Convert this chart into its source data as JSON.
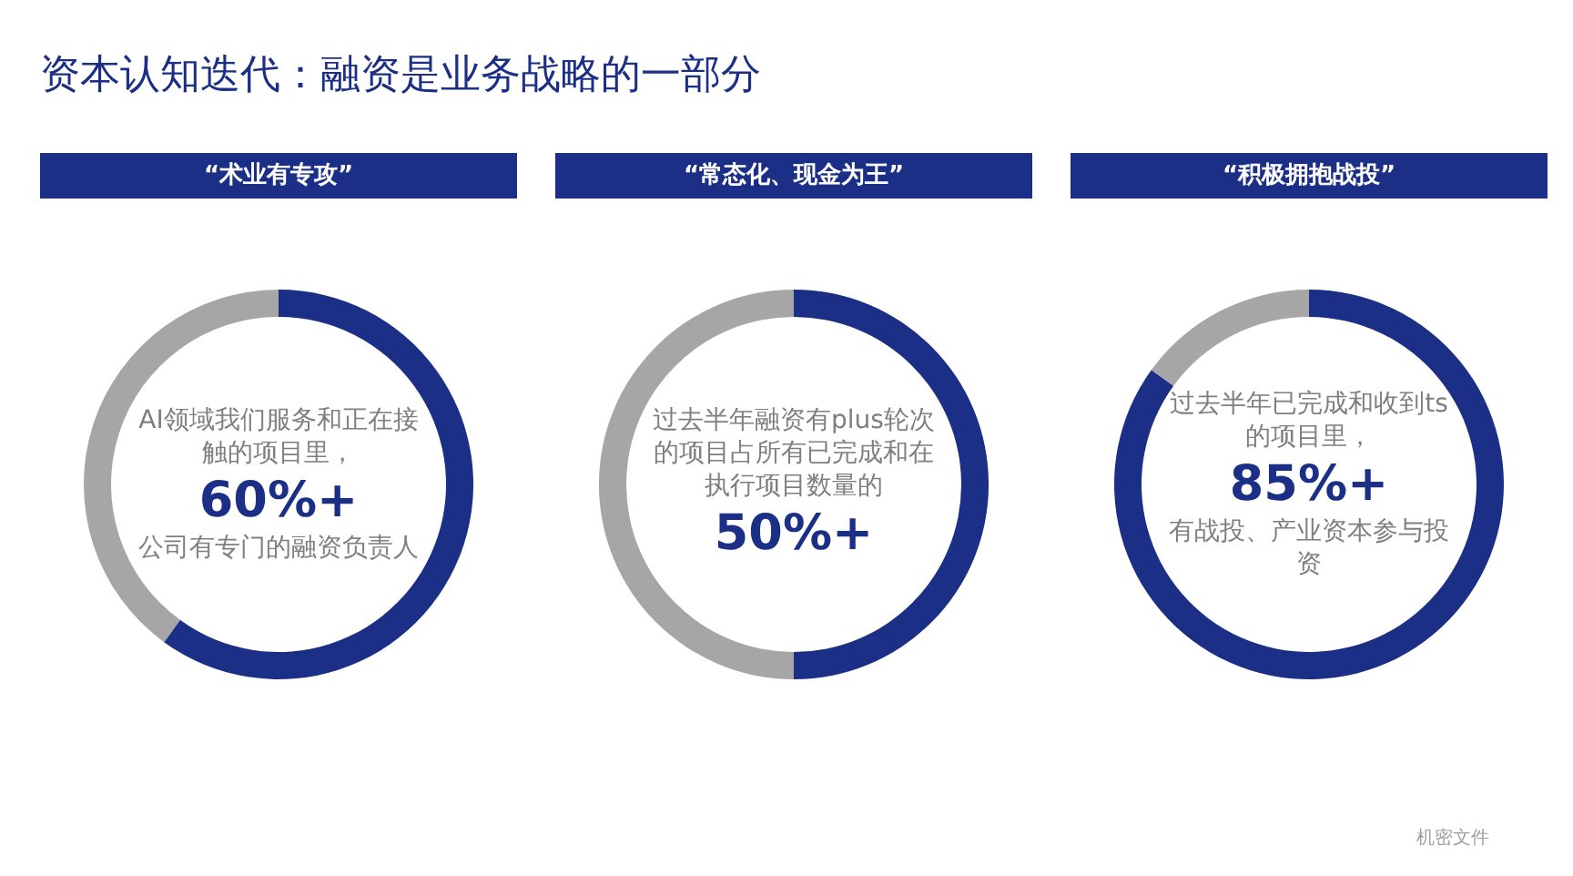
{
  "chart_data": [
    {
      "type": "donut",
      "title": "“术业有专攻”",
      "categories": [
        null,
        null
      ],
      "values": [
        60,
        40
      ],
      "colors": [
        "#1b2f86",
        "#a6a6a6"
      ],
      "value_labels": [
        "60%+",
        null
      ],
      "annotations": [
        "AI领域我们服务和正在接触的项目里，",
        "公司有专门的融资负责人"
      ]
    },
    {
      "type": "donut",
      "title": "“常态化、现金为王”",
      "categories": [
        null,
        null
      ],
      "values": [
        50,
        50
      ],
      "colors": [
        "#1b2f86",
        "#a6a6a6"
      ],
      "value_labels": [
        "50%+",
        null
      ],
      "annotations": [
        "过去半年融资有plus轮次的项目占所有已完成和在执行项目数量的"
      ]
    },
    {
      "type": "donut",
      "title": "“积极拥抱战投”",
      "categories": [
        null,
        null
      ],
      "values": [
        85,
        15
      ],
      "colors": [
        "#1b2f86",
        "#a6a6a6"
      ],
      "value_labels": [
        "85%+",
        null
      ],
      "annotations": [
        "过去半年已完成和收到ts的项目里，",
        "有战投、产业资本参与投资"
      ]
    },
    {
      "type": "other",
      "title": "资本认知迭代：融资是业务战略的一部分",
      "annotations": [
        "机密文件"
      ]
    }
  ]
}
